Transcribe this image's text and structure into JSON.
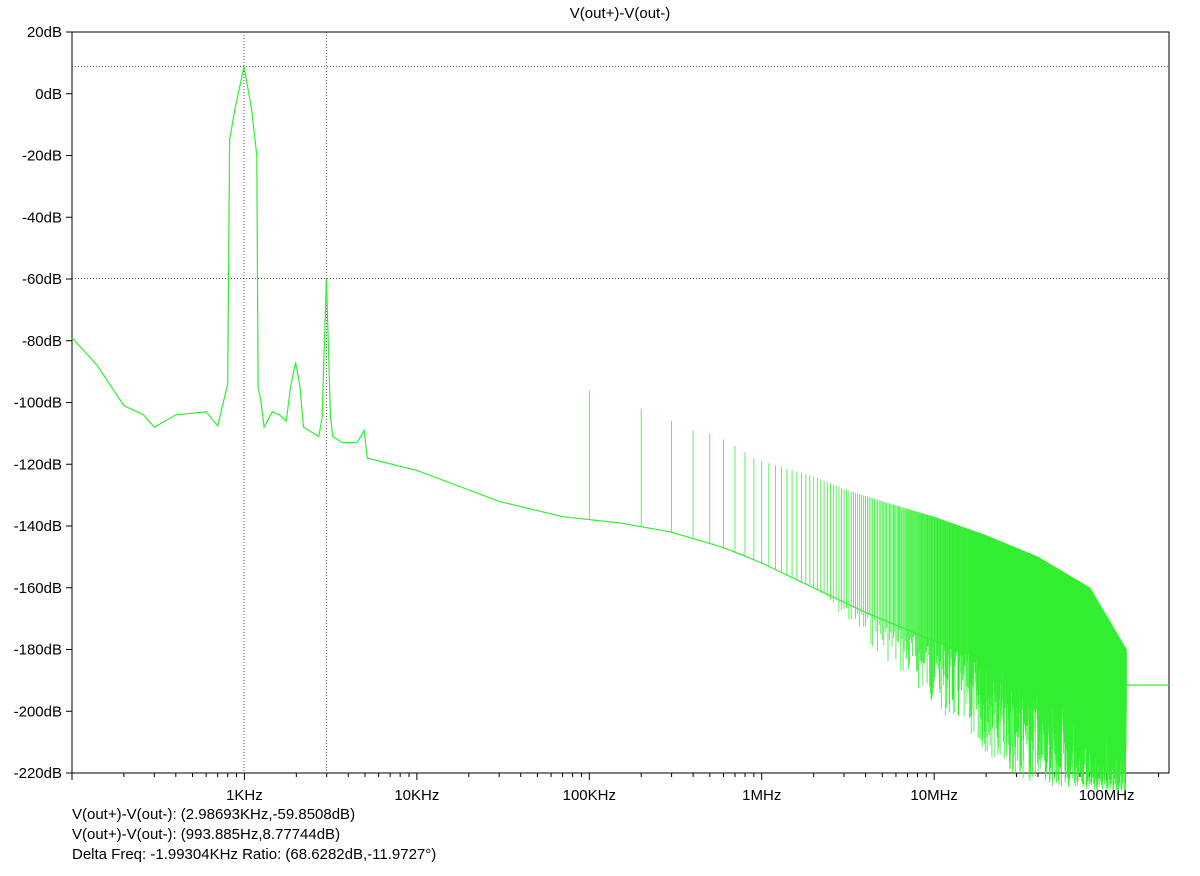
{
  "chart_data": {
    "type": "line",
    "title": "V(out+)-V(out-)",
    "x_scale": "log",
    "xlim": [
      100,
      230000000
    ],
    "ylim": [
      -220,
      20
    ],
    "x_ticks": [
      {
        "value": 1000,
        "label": "1KHz"
      },
      {
        "value": 10000,
        "label": "10KHz"
      },
      {
        "value": 100000,
        "label": "100KHz"
      },
      {
        "value": 1000000,
        "label": "1MHz"
      },
      {
        "value": 10000000,
        "label": "10MHz"
      },
      {
        "value": 100000000,
        "label": "100MHz"
      }
    ],
    "y_ticks": [
      {
        "value": 20,
        "label": "20dB"
      },
      {
        "value": 0,
        "label": "0dB"
      },
      {
        "value": -20,
        "label": "-20dB"
      },
      {
        "value": -40,
        "label": "-40dB"
      },
      {
        "value": -60,
        "label": "-60dB"
      },
      {
        "value": -80,
        "label": "-80dB"
      },
      {
        "value": -100,
        "label": "-100dB"
      },
      {
        "value": -120,
        "label": "-120dB"
      },
      {
        "value": -140,
        "label": "-140dB"
      },
      {
        "value": -160,
        "label": "-160dB"
      },
      {
        "value": -180,
        "label": "-180dB"
      },
      {
        "value": -200,
        "label": "-200dB"
      },
      {
        "value": -220,
        "label": "-220dB"
      }
    ],
    "series": [
      {
        "name": "V(out+)-V(out-)",
        "color": "#33ee33",
        "points": [
          [
            100,
            -79
          ],
          [
            140,
            -88
          ],
          [
            200,
            -101
          ],
          [
            260,
            -104
          ],
          [
            300,
            -108
          ],
          [
            400,
            -104
          ],
          [
            600,
            -103
          ],
          [
            700,
            -107.5
          ],
          [
            800,
            -94
          ],
          [
            820,
            -15
          ],
          [
            880,
            -5
          ],
          [
            993.885,
            8.77744
          ],
          [
            1100,
            -5
          ],
          [
            1180,
            -20
          ],
          [
            1200,
            -95
          ],
          [
            1250,
            -100
          ],
          [
            1300,
            -108
          ],
          [
            1450,
            -103
          ],
          [
            1600,
            -104
          ],
          [
            1750,
            -106
          ],
          [
            1850,
            -95
          ],
          [
            1980,
            -87
          ],
          [
            2100,
            -95
          ],
          [
            2200,
            -108
          ],
          [
            2700,
            -111
          ],
          [
            2820,
            -105
          ],
          [
            2986.93,
            -59.8508
          ],
          [
            3150,
            -104
          ],
          [
            3250,
            -111
          ],
          [
            3700,
            -113
          ],
          [
            4500,
            -113
          ],
          [
            4950,
            -109
          ],
          [
            5150,
            -118
          ],
          [
            10000,
            -122
          ],
          [
            30000,
            -132
          ],
          [
            70000,
            -137
          ],
          [
            150000,
            -139
          ],
          [
            300000,
            -142
          ],
          [
            600000,
            -147
          ],
          [
            1000000,
            -152
          ],
          [
            2000000,
            -160
          ],
          [
            4000000,
            -168
          ],
          [
            8000000,
            -175
          ],
          [
            15000000,
            -181
          ],
          [
            30000000,
            -187
          ],
          [
            60000000,
            -190
          ],
          [
            120000000,
            -191.5
          ],
          [
            230000000,
            -191.5
          ]
        ],
        "spurs": [
          {
            "f": 100000,
            "db": -96
          },
          {
            "f": 200000,
            "db": -102
          },
          {
            "f": 300000,
            "db": -106
          },
          {
            "f": 400000,
            "db": -109
          },
          {
            "f": 500000,
            "db": -110
          },
          {
            "f": 600000,
            "db": -112
          },
          {
            "f": 700000,
            "db": -114
          },
          {
            "f": 800000,
            "db": -116
          },
          {
            "f": 900000,
            "db": -118
          },
          {
            "f": 1000000,
            "db": -119
          },
          {
            "f": 2000000,
            "db": -124
          },
          {
            "f": 3000000,
            "db": -128
          },
          {
            "f": 5000000,
            "db": -132
          },
          {
            "f": 10000000,
            "db": -137
          },
          {
            "f": 20000000,
            "db": -143
          },
          {
            "f": 40000000,
            "db": -150
          },
          {
            "f": 80000000,
            "db": -160
          },
          {
            "f": 130000000,
            "db": -180
          }
        ]
      }
    ],
    "cursors": [
      {
        "x": 2986.93,
        "y": -59.8508
      },
      {
        "x": 993.885,
        "y": 8.77744
      }
    ]
  },
  "readouts": {
    "cursor1": "V(out+)-V(out-): (2.98693KHz,-59.8508dB)",
    "cursor2": "V(out+)-V(out-): (993.885Hz,8.77744dB)",
    "delta": "Delta Freq: -1.99304KHz Ratio: (68.6282dB,-11.9727°)"
  }
}
